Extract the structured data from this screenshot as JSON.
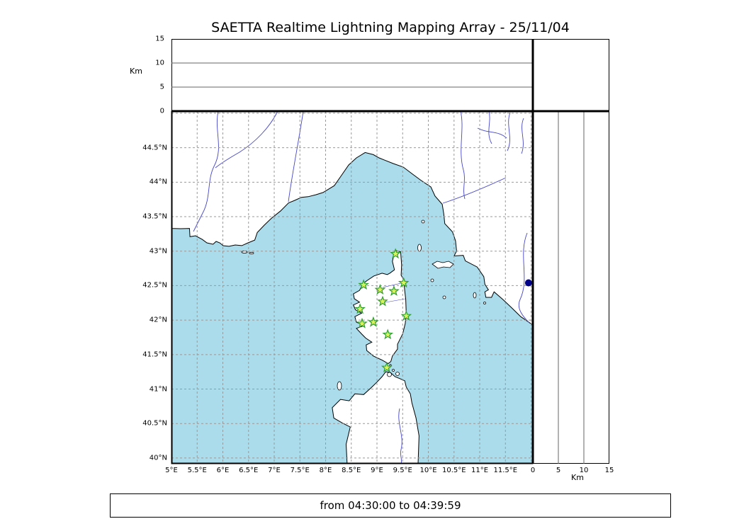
{
  "title": "SAETTA Realtime Lightning Mapping Array - 25/11/04",
  "time_range_label": "from 04:30:00 to 04:39:59",
  "axes": {
    "altitude_unit": "Km",
    "altitude_range": [
      0,
      15
    ],
    "altitude_ticks": [
      0,
      5,
      10,
      15
    ],
    "altitude_grid": [
      5,
      10
    ],
    "lon_range": [
      5,
      12.034
    ],
    "lat_range": [
      39.917,
      45.03
    ],
    "lon_grid": [
      5,
      5.5,
      6,
      6.5,
      7,
      7.5,
      8,
      8.5,
      9,
      9.5,
      10,
      10.5,
      11,
      11.5,
      12
    ],
    "lat_grid": [
      40,
      40.5,
      41,
      41.5,
      42,
      42.5,
      43,
      43.5,
      44,
      44.5,
      45
    ],
    "lon_ticks": [
      {
        "value": 5,
        "label": "5°E"
      },
      {
        "value": 5.5,
        "label": "5.5°E"
      },
      {
        "value": 6,
        "label": "6°E"
      },
      {
        "value": 6.5,
        "label": "6.5°E"
      },
      {
        "value": 7,
        "label": "7°E"
      },
      {
        "value": 7.5,
        "label": "7.5°E"
      },
      {
        "value": 8,
        "label": "8°E"
      },
      {
        "value": 8.5,
        "label": "8.5°E"
      },
      {
        "value": 9,
        "label": "9°E"
      },
      {
        "value": 9.5,
        "label": "9.5°E"
      },
      {
        "value": 10,
        "label": "10°E"
      },
      {
        "value": 10.5,
        "label": "10.5°E"
      },
      {
        "value": 11,
        "label": "11°E"
      },
      {
        "value": 11.5,
        "label": "11.5°E"
      }
    ],
    "lat_ticks": [
      {
        "value": 40,
        "label": "40°N"
      },
      {
        "value": 40.5,
        "label": "40.5°N"
      },
      {
        "value": 41,
        "label": "41°N"
      },
      {
        "value": 41.5,
        "label": "41.5°N"
      },
      {
        "value": 42,
        "label": "42°N"
      },
      {
        "value": 42.5,
        "label": "42.5°N"
      },
      {
        "value": 43,
        "label": "43°N"
      },
      {
        "value": 43.5,
        "label": "43.5°N"
      },
      {
        "value": 44,
        "label": "44°N"
      },
      {
        "value": 44.5,
        "label": "44.5°N"
      }
    ]
  },
  "chart_data": {
    "type": "scatter",
    "title": "SAETTA Realtime Lightning Mapping Array - 25/11/04",
    "panels": [
      {
        "name": "altitude-vs-longitude",
        "position": "top",
        "ylabel": "Km",
        "ylim": [
          0,
          15
        ],
        "yticks": [
          0,
          5,
          10,
          15
        ],
        "points": []
      },
      {
        "name": "map",
        "position": "center",
        "xlim_lon": [
          5,
          12.034
        ],
        "ylim_lat": [
          39.917,
          45.03
        ],
        "grid": "dashed"
      },
      {
        "name": "altitude-vs-latitude",
        "position": "right",
        "xlabel": "Km",
        "xlim": [
          0,
          15
        ],
        "xticks": [
          0,
          5,
          10,
          15
        ],
        "points": []
      }
    ],
    "stations": [
      {
        "lon": 9.36,
        "lat": 42.96
      },
      {
        "lon": 8.74,
        "lat": 42.51
      },
      {
        "lon": 9.06,
        "lat": 42.44
      },
      {
        "lon": 9.33,
        "lat": 42.42
      },
      {
        "lon": 9.52,
        "lat": 42.54
      },
      {
        "lon": 9.11,
        "lat": 42.27
      },
      {
        "lon": 8.67,
        "lat": 42.16
      },
      {
        "lon": 9.57,
        "lat": 42.06
      },
      {
        "lon": 8.71,
        "lat": 41.95
      },
      {
        "lon": 8.93,
        "lat": 41.97
      },
      {
        "lon": 9.21,
        "lat": 41.79
      },
      {
        "lon": 9.19,
        "lat": 41.31
      }
    ],
    "detection_point": {
      "lon": 11.95,
      "lat": 42.54,
      "color": "#00008b"
    },
    "colors": {
      "sea": "#aadcec",
      "land": "#ffffff",
      "river": "#4646c8",
      "grid": "#999999",
      "station_fill": "#d9f25f",
      "station_edge": "#2f9e2f"
    }
  }
}
